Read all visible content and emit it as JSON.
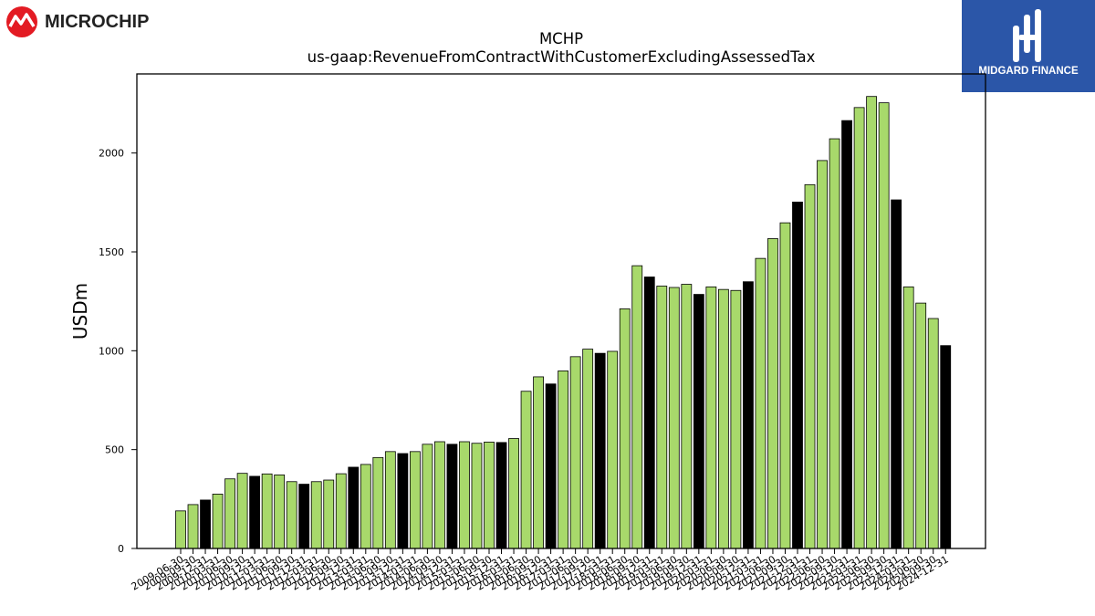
{
  "brand": {
    "left_logo_text": "MICROCHIP",
    "right_logo_text": "MIDGARD FINANCE",
    "right_logo_bg": "#2b56a8",
    "left_logo_color": "#e31b23"
  },
  "chart_data": {
    "type": "bar",
    "title": "MCHP",
    "subtitle": "us-gaap:RevenueFromContractWithCustomerExcludingAssessedTax",
    "xlabel": "",
    "ylabel": "USDm",
    "ylim": [
      0,
      2400
    ],
    "yticks": [
      0,
      500,
      1000,
      1500,
      2000
    ],
    "grid": false,
    "colors": {
      "quarter": "#a8d96b",
      "annual": "#000000",
      "edge": "#000000"
    },
    "categories": [
      "2009-06-30",
      "2009-09-30",
      "2009-12-31",
      "2010-03-31",
      "2010-06-30",
      "2010-09-30",
      "2010-12-31",
      "2011-03-31",
      "2011-06-30",
      "2011-09-30",
      "2011-12-31",
      "2012-03-31",
      "2012-06-30",
      "2012-09-30",
      "2012-12-31",
      "2013-03-31",
      "2013-06-30",
      "2013-09-30",
      "2013-12-31",
      "2014-03-31",
      "2014-06-30",
      "2014-09-30",
      "2014-12-31",
      "2015-03-31",
      "2015-06-30",
      "2015-09-30",
      "2015-12-31",
      "2016-03-31",
      "2016-06-30",
      "2016-09-30",
      "2016-12-31",
      "2017-03-31",
      "2017-06-30",
      "2017-09-30",
      "2017-12-31",
      "2018-03-31",
      "2018-06-30",
      "2018-09-30",
      "2018-12-31",
      "2019-03-31",
      "2019-06-30",
      "2019-09-30",
      "2019-12-31",
      "2020-03-31",
      "2020-06-30",
      "2020-09-30",
      "2020-12-31",
      "2021-03-31",
      "2021-06-30",
      "2021-09-30",
      "2021-12-31",
      "2022-03-31",
      "2022-06-30",
      "2022-09-30",
      "2022-12-31",
      "2023-03-31",
      "2023-06-30",
      "2023-09-30",
      "2023-12-31",
      "2024-03-31",
      "2024-06-30",
      "2024-09-30",
      "2024-12-31"
    ],
    "values": [
      190,
      222,
      245,
      275,
      352,
      380,
      365,
      377,
      372,
      338,
      325,
      338,
      346,
      378,
      411,
      425,
      460,
      490,
      480,
      490,
      527,
      540,
      527,
      540,
      532,
      538,
      536,
      556,
      795,
      868,
      832,
      898,
      970,
      1008,
      987,
      997,
      1212,
      1430,
      1373,
      1327,
      1320,
      1336,
      1285,
      1323,
      1310,
      1305,
      1349,
      1467,
      1567,
      1647,
      1752,
      1840,
      1962,
      2072,
      2164,
      2230,
      2286,
      2254,
      1763,
      1323,
      1241,
      1163,
      1026
    ],
    "annual_flags": [
      0,
      0,
      1,
      0,
      0,
      0,
      1,
      0,
      0,
      0,
      1,
      0,
      0,
      0,
      1,
      0,
      0,
      0,
      1,
      0,
      0,
      0,
      1,
      0,
      0,
      0,
      1,
      0,
      0,
      0,
      1,
      0,
      0,
      0,
      1,
      0,
      0,
      0,
      1,
      0,
      0,
      0,
      1,
      0,
      0,
      0,
      1,
      0,
      0,
      0,
      1,
      0,
      0,
      0,
      1,
      0,
      0,
      0,
      1,
      0,
      0,
      0,
      1
    ]
  }
}
